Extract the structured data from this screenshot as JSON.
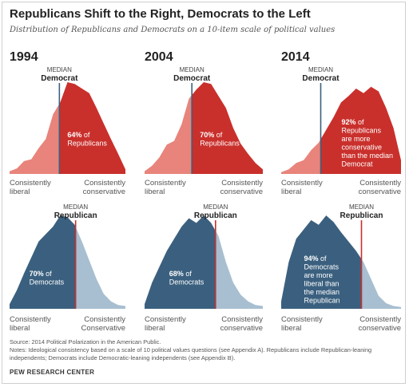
{
  "title": "Republicans Shift to the Right, Democrats to the Left",
  "subtitle": "Distribution of Republicans and Democrats on a 10-item scale of political values",
  "colors": {
    "rep_dark": "#c9302c",
    "rep_light": "#e8847b",
    "dem_dark": "#3b607f",
    "dem_light": "#a8bfd1",
    "rep_median_line": "#3b607f",
    "dem_median_line": "#c9302c"
  },
  "chart_data": [
    {
      "type": "area",
      "party": "Republicans",
      "year": "1994",
      "median_caption": "MEDIAN",
      "median_label": "Democrat",
      "median_x": 0.43,
      "annotation_bold": "64%",
      "annotation_text": [
        "of",
        "Republicans"
      ],
      "xlabel_left": [
        "Consistently",
        "liberal"
      ],
      "xlabel_right": [
        "Consistently",
        "conservative"
      ],
      "values": [
        0.03,
        0.06,
        0.14,
        0.16,
        0.28,
        0.38,
        0.65,
        0.78,
        1.0,
        0.98,
        0.93,
        0.88,
        0.72,
        0.55,
        0.38,
        0.22,
        0.05
      ]
    },
    {
      "type": "area",
      "party": "Republicans",
      "year": "2004",
      "median_caption": "MEDIAN",
      "median_label": "Democrat",
      "median_x": 0.4,
      "annotation_bold": "70%",
      "annotation_text": [
        "of",
        "Republicans"
      ],
      "xlabel_left": [
        "Consistently",
        "liberal"
      ],
      "xlabel_right": [
        "Consistently",
        "conservative"
      ],
      "values": [
        0.03,
        0.09,
        0.18,
        0.32,
        0.36,
        0.54,
        0.82,
        0.92,
        1.0,
        0.98,
        0.85,
        0.72,
        0.5,
        0.33,
        0.22,
        0.12,
        0.05
      ]
    },
    {
      "type": "area",
      "party": "Republicans",
      "year": "2014",
      "median_caption": "MEDIAN",
      "median_label": "Democrat",
      "median_x": 0.33,
      "annotation_bold": "92%",
      "annotation_text": [
        "of",
        "Republicans",
        "are more",
        "conservative",
        "than the median",
        "Democrat"
      ],
      "xlabel_left": [
        "Consistently",
        "liberal"
      ],
      "xlabel_right": [
        "Consistently",
        "conservative"
      ],
      "values": [
        0.02,
        0.05,
        0.12,
        0.15,
        0.26,
        0.34,
        0.48,
        0.62,
        0.78,
        0.85,
        0.93,
        0.88,
        0.95,
        0.9,
        0.72,
        0.5,
        0.15
      ]
    },
    {
      "type": "area",
      "party": "Democrats",
      "year": "1994",
      "median_caption": "MEDIAN",
      "median_label": "Republican",
      "median_x": 0.57,
      "annotation_bold": "70%",
      "annotation_text": [
        "of",
        "Democrats"
      ],
      "xlabel_left": [
        "Consistently",
        "liberal"
      ],
      "xlabel_right": [
        "Consistently",
        "Conservative"
      ],
      "values": [
        0.05,
        0.2,
        0.38,
        0.55,
        0.72,
        0.8,
        0.88,
        1.0,
        0.98,
        0.9,
        0.72,
        0.52,
        0.32,
        0.16,
        0.08,
        0.04,
        0.03
      ]
    },
    {
      "type": "area",
      "party": "Democrats",
      "year": "2004",
      "median_caption": "MEDIAN",
      "median_label": "Republican",
      "median_x": 0.6,
      "annotation_bold": "68%",
      "annotation_text": [
        "of",
        "Democrats"
      ],
      "xlabel_left": [
        "Consistently",
        "liberal"
      ],
      "xlabel_right": [
        "Consistently",
        "conservative"
      ],
      "values": [
        0.05,
        0.28,
        0.45,
        0.62,
        0.75,
        0.88,
        0.97,
        0.92,
        1.0,
        0.92,
        0.78,
        0.5,
        0.28,
        0.15,
        0.08,
        0.04,
        0.03
      ]
    },
    {
      "type": "area",
      "party": "Democrats",
      "year": "2014",
      "median_caption": "MEDIAN",
      "median_label": "Republican",
      "median_x": 0.67,
      "annotation_bold": "94%",
      "annotation_text": [
        "of",
        "Democrats",
        "are more",
        "liberal than",
        "the median",
        "Republican"
      ],
      "xlabel_left": [
        "Consistently",
        "liberal"
      ],
      "xlabel_right": [
        "Consistently",
        "conservative"
      ],
      "values": [
        0.08,
        0.5,
        0.75,
        0.85,
        0.95,
        0.9,
        1.0,
        0.93,
        0.82,
        0.72,
        0.62,
        0.5,
        0.32,
        0.14,
        0.06,
        0.03,
        0.02
      ]
    }
  ],
  "footer": {
    "source": "Source: 2014 Political Polarization in the American Public.",
    "notes": "Notes: Ideological consistency based on a scale of 10 political values questions (see Appendix A). Republicans include Republican-leaning independents; Democrats include Democratic-leaning independents (see Appendix B).",
    "org": "PEW RESEARCH CENTER"
  }
}
